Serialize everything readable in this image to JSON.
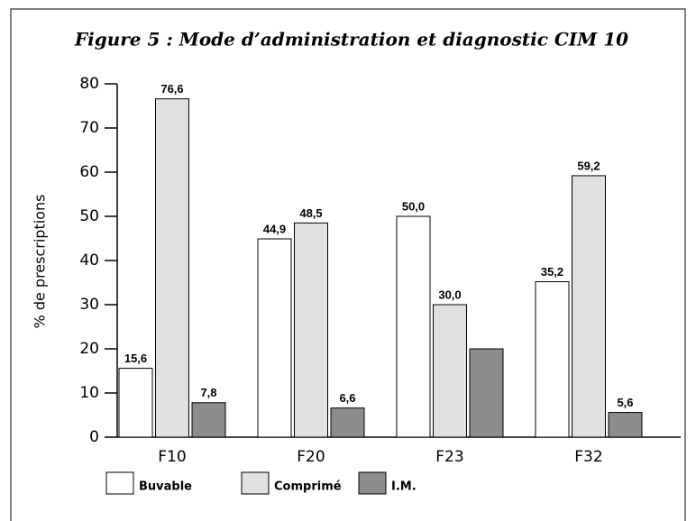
{
  "chart_data": {
    "type": "bar",
    "title": "Figure 5 : Mode d’administration et diagnostic CIM 10",
    "y_label": "% de prescriptions",
    "categories": [
      "F10",
      "F20",
      "F23",
      "F32"
    ],
    "series": [
      {
        "name": "Buvable",
        "color": "#ffffff",
        "values": [
          15.6,
          44.9,
          50.0,
          35.2
        ],
        "value_labels": [
          "15,6",
          "44,9",
          "50,0",
          "35,2"
        ]
      },
      {
        "name": "Comprimé",
        "color": "#e0e0e0",
        "values": [
          76.6,
          48.5,
          30.0,
          59.2
        ],
        "value_labels": [
          "76,6",
          "48,5",
          "30,0",
          "59,2"
        ]
      },
      {
        "name": "I.M.",
        "color": "#8c8c8c",
        "values": [
          7.8,
          6.6,
          20,
          5.6
        ],
        "value_labels": [
          "7,8",
          "6,6",
          null,
          "5,6"
        ]
      }
    ],
    "ylim": [
      0,
      80
    ],
    "yticks": [
      0,
      10,
      20,
      30,
      40,
      50,
      60,
      70,
      80
    ]
  }
}
